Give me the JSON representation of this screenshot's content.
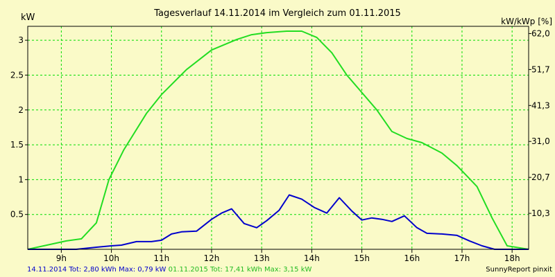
{
  "chart_data": {
    "type": "line",
    "title": "Tagesverlauf 14.11.2014 im Vergleich zum 01.11.2015",
    "ylabel": "kW",
    "ylabel_right": "kW/kWp [%]",
    "x_ticks": [
      "9h",
      "10h",
      "11h",
      "12h",
      "13h",
      "14h",
      "15h",
      "16h",
      "17h",
      "18h"
    ],
    "xlim": [
      8.33,
      18.33
    ],
    "ylim": [
      0,
      3.2
    ],
    "y_ticks": [
      0.5,
      1,
      1.5,
      2,
      2.5,
      3
    ],
    "y_tick_labels": [
      "0.5",
      "1",
      "1.5",
      "2",
      "2.5",
      "3"
    ],
    "y_right_ticks": [
      0.516,
      1.032,
      1.548,
      2.064,
      2.58,
      3.096
    ],
    "y_right_tick_labels": [
      "10,3",
      "20,7",
      "31,0",
      "41,3",
      "51,7",
      "62,0"
    ],
    "grid": true,
    "background": "#fafac8",
    "series": [
      {
        "name": "01.11.2015",
        "color": "#22dd22",
        "x": [
          8.33,
          9.1,
          9.4,
          9.7,
          9.95,
          10.25,
          10.7,
          11.0,
          11.5,
          12.0,
          12.5,
          12.8,
          13.1,
          13.5,
          13.8,
          14.1,
          14.4,
          14.7,
          15.0,
          15.3,
          15.6,
          15.9,
          16.2,
          16.6,
          16.9,
          17.1,
          17.3,
          17.6,
          17.9,
          18.33
        ],
        "y": [
          0.0,
          0.12,
          0.15,
          0.38,
          1.0,
          1.43,
          1.95,
          2.22,
          2.58,
          2.86,
          3.01,
          3.08,
          3.11,
          3.13,
          3.13,
          3.04,
          2.82,
          2.5,
          2.25,
          2.0,
          1.69,
          1.59,
          1.53,
          1.38,
          1.2,
          1.05,
          0.9,
          0.45,
          0.05,
          0.0
        ]
      },
      {
        "name": "14.11.2014",
        "color": "#0000cc",
        "x": [
          8.33,
          9.3,
          9.7,
          10.0,
          10.2,
          10.5,
          10.8,
          11.0,
          11.2,
          11.4,
          11.7,
          12.0,
          12.2,
          12.4,
          12.65,
          12.9,
          13.1,
          13.35,
          13.55,
          13.8,
          14.05,
          14.3,
          14.55,
          14.8,
          15.0,
          15.2,
          15.4,
          15.6,
          15.85,
          16.1,
          16.3,
          16.6,
          16.9,
          17.15,
          17.4,
          17.65,
          18.33
        ],
        "y": [
          0.0,
          0.0,
          0.03,
          0.05,
          0.06,
          0.11,
          0.11,
          0.13,
          0.22,
          0.25,
          0.26,
          0.43,
          0.52,
          0.58,
          0.37,
          0.31,
          0.41,
          0.56,
          0.78,
          0.72,
          0.6,
          0.52,
          0.74,
          0.55,
          0.42,
          0.45,
          0.43,
          0.4,
          0.48,
          0.31,
          0.23,
          0.22,
          0.2,
          0.12,
          0.05,
          0.0,
          0.0
        ]
      }
    ]
  },
  "footer": {
    "series1_text": "14.11.2014 Tot: 2,80 kWh Max: 0,79 kW",
    "series1_color": "#0000cc",
    "series2_text": "01.11.2015 Tot: 17,41 kWh Max: 3,15 kW",
    "series2_color": "#22bb22",
    "credit": "SunnyReport pinxit"
  },
  "colors": {
    "grid": "#00dd00",
    "axis": "#000000",
    "plot_background": "#fafac8"
  }
}
